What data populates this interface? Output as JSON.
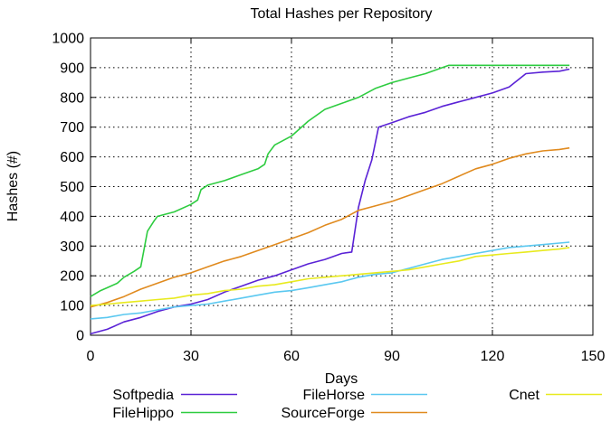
{
  "chart_data": {
    "type": "line",
    "title": "Total Hashes per Repository",
    "xlabel": "Days",
    "ylabel": "Hashes (#)",
    "xlim": [
      0,
      150
    ],
    "ylim": [
      0,
      1000
    ],
    "xticks": [
      0,
      30,
      60,
      90,
      120,
      150
    ],
    "yticks": [
      0,
      100,
      200,
      300,
      400,
      500,
      600,
      700,
      800,
      900,
      1000
    ],
    "grid": true,
    "legend_position": "bottom",
    "series": [
      {
        "name": "Softpedia",
        "color": "#5a22d6",
        "points": [
          [
            0,
            5
          ],
          [
            5,
            20
          ],
          [
            10,
            45
          ],
          [
            15,
            60
          ],
          [
            20,
            80
          ],
          [
            25,
            95
          ],
          [
            30,
            105
          ],
          [
            35,
            120
          ],
          [
            40,
            145
          ],
          [
            45,
            165
          ],
          [
            50,
            185
          ],
          [
            55,
            200
          ],
          [
            60,
            220
          ],
          [
            65,
            240
          ],
          [
            70,
            255
          ],
          [
            75,
            275
          ],
          [
            78,
            280
          ],
          [
            80,
            430
          ],
          [
            82,
            520
          ],
          [
            84,
            590
          ],
          [
            86,
            700
          ],
          [
            90,
            715
          ],
          [
            95,
            735
          ],
          [
            100,
            750
          ],
          [
            105,
            770
          ],
          [
            110,
            785
          ],
          [
            115,
            800
          ],
          [
            120,
            815
          ],
          [
            125,
            835
          ],
          [
            130,
            880
          ],
          [
            135,
            885
          ],
          [
            140,
            888
          ],
          [
            143,
            895
          ]
        ]
      },
      {
        "name": "FileHippo",
        "color": "#2ecc40",
        "points": [
          [
            0,
            130
          ],
          [
            3,
            150
          ],
          [
            5,
            160
          ],
          [
            8,
            175
          ],
          [
            10,
            195
          ],
          [
            13,
            215
          ],
          [
            15,
            230
          ],
          [
            16,
            290
          ],
          [
            17,
            350
          ],
          [
            19,
            385
          ],
          [
            20,
            400
          ],
          [
            25,
            415
          ],
          [
            30,
            440
          ],
          [
            32,
            455
          ],
          [
            33,
            490
          ],
          [
            35,
            505
          ],
          [
            40,
            520
          ],
          [
            45,
            540
          ],
          [
            50,
            560
          ],
          [
            52,
            575
          ],
          [
            53,
            610
          ],
          [
            55,
            640
          ],
          [
            60,
            670
          ],
          [
            62,
            690
          ],
          [
            65,
            720
          ],
          [
            70,
            760
          ],
          [
            75,
            780
          ],
          [
            80,
            800
          ],
          [
            85,
            830
          ],
          [
            90,
            850
          ],
          [
            95,
            865
          ],
          [
            100,
            880
          ],
          [
            105,
            900
          ],
          [
            107,
            908
          ],
          [
            120,
            908
          ],
          [
            143,
            908
          ]
        ]
      },
      {
        "name": "FileHorse",
        "color": "#5bc8f0",
        "points": [
          [
            0,
            55
          ],
          [
            5,
            60
          ],
          [
            10,
            70
          ],
          [
            15,
            75
          ],
          [
            20,
            85
          ],
          [
            25,
            95
          ],
          [
            30,
            100
          ],
          [
            35,
            105
          ],
          [
            40,
            115
          ],
          [
            45,
            125
          ],
          [
            50,
            135
          ],
          [
            55,
            145
          ],
          [
            60,
            150
          ],
          [
            65,
            160
          ],
          [
            70,
            170
          ],
          [
            75,
            180
          ],
          [
            80,
            195
          ],
          [
            85,
            205
          ],
          [
            90,
            210
          ],
          [
            95,
            225
          ],
          [
            100,
            240
          ],
          [
            105,
            255
          ],
          [
            110,
            265
          ],
          [
            115,
            275
          ],
          [
            120,
            285
          ],
          [
            125,
            295
          ],
          [
            130,
            300
          ],
          [
            135,
            305
          ],
          [
            140,
            310
          ],
          [
            143,
            313
          ]
        ]
      },
      {
        "name": "SourceForge",
        "color": "#e08a1e",
        "points": [
          [
            0,
            95
          ],
          [
            5,
            110
          ],
          [
            10,
            130
          ],
          [
            15,
            155
          ],
          [
            20,
            175
          ],
          [
            25,
            195
          ],
          [
            30,
            210
          ],
          [
            35,
            230
          ],
          [
            40,
            250
          ],
          [
            45,
            265
          ],
          [
            50,
            285
          ],
          [
            55,
            305
          ],
          [
            60,
            325
          ],
          [
            65,
            345
          ],
          [
            70,
            370
          ],
          [
            75,
            390
          ],
          [
            80,
            420
          ],
          [
            85,
            435
          ],
          [
            90,
            450
          ],
          [
            95,
            470
          ],
          [
            100,
            490
          ],
          [
            105,
            510
          ],
          [
            110,
            535
          ],
          [
            115,
            560
          ],
          [
            120,
            575
          ],
          [
            125,
            595
          ],
          [
            130,
            610
          ],
          [
            135,
            620
          ],
          [
            140,
            625
          ],
          [
            143,
            630
          ]
        ]
      },
      {
        "name": "Cnet",
        "color": "#e8ea1e",
        "points": [
          [
            0,
            100
          ],
          [
            5,
            105
          ],
          [
            10,
            110
          ],
          [
            15,
            115
          ],
          [
            20,
            120
          ],
          [
            25,
            125
          ],
          [
            30,
            135
          ],
          [
            35,
            140
          ],
          [
            40,
            150
          ],
          [
            45,
            155
          ],
          [
            50,
            165
          ],
          [
            55,
            170
          ],
          [
            60,
            180
          ],
          [
            65,
            190
          ],
          [
            70,
            195
          ],
          [
            75,
            200
          ],
          [
            80,
            205
          ],
          [
            85,
            210
          ],
          [
            90,
            215
          ],
          [
            95,
            220
          ],
          [
            100,
            230
          ],
          [
            105,
            240
          ],
          [
            110,
            250
          ],
          [
            115,
            265
          ],
          [
            120,
            270
          ],
          [
            125,
            275
          ],
          [
            130,
            280
          ],
          [
            135,
            285
          ],
          [
            140,
            290
          ],
          [
            143,
            295
          ]
        ]
      }
    ]
  }
}
